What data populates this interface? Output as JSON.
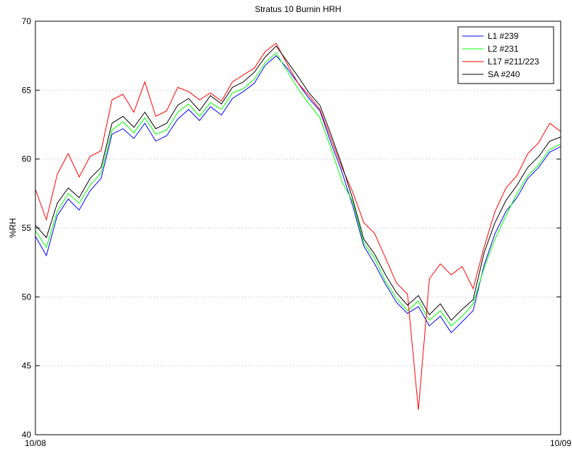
{
  "chart_data": {
    "type": "line",
    "title": "Stratus 10 Burnin HRH",
    "y_label": "%RH",
    "x": [
      0,
      0.5,
      1,
      1.5,
      2,
      2.5,
      3,
      3.5,
      4,
      4.5,
      5,
      5.5,
      6,
      6.5,
      7,
      7.5,
      8,
      8.5,
      9,
      9.5,
      10,
      10.5,
      11,
      11.5,
      12,
      12.5,
      13,
      13.5,
      14,
      14.5,
      15,
      15.5,
      16,
      16.5,
      17,
      17.5,
      18,
      18.5,
      19,
      19.5,
      20,
      20.5,
      21,
      21.5,
      22,
      22.5,
      23,
      23.5,
      24
    ],
    "xlim": [
      0,
      24
    ],
    "xticks": [
      {
        "value": 0,
        "label": "10/08"
      },
      {
        "value": 24,
        "label": "10/09"
      }
    ],
    "ylim": [
      40,
      70
    ],
    "yticks": [
      40,
      45,
      50,
      55,
      60,
      65,
      70
    ],
    "grid": true,
    "legend": "northeast",
    "series": [
      {
        "name": "L1 #239",
        "color": "#0000ff",
        "values": [
          54.4,
          53.0,
          55.9,
          57.1,
          56.3,
          57.7,
          58.6,
          61.8,
          62.2,
          61.5,
          62.6,
          61.3,
          61.7,
          62.9,
          63.6,
          62.8,
          63.8,
          63.2,
          64.4,
          64.9,
          65.5,
          66.8,
          67.5,
          66.6,
          65.5,
          64.4,
          63.5,
          61.2,
          59.1,
          56.6,
          53.7,
          52.4,
          50.9,
          49.6,
          48.8,
          49.3,
          47.9,
          48.6,
          47.4,
          48.2,
          49.0,
          52.3,
          54.6,
          56.2,
          57.2,
          58.6,
          59.4,
          60.5,
          60.9
        ]
      },
      {
        "name": "L2 #231",
        "color": "#00ff00",
        "values": [
          54.8,
          53.6,
          56.2,
          57.5,
          56.8,
          58.1,
          59.0,
          62.1,
          62.7,
          61.9,
          63.0,
          61.8,
          62.1,
          63.4,
          64.0,
          63.1,
          64.1,
          63.6,
          64.8,
          65.1,
          65.8,
          67.0,
          67.7,
          66.4,
          65.1,
          64.0,
          63.0,
          60.8,
          58.4,
          56.9,
          53.9,
          52.8,
          51.1,
          49.9,
          49.0,
          49.7,
          48.3,
          49.0,
          47.9,
          48.6,
          49.5,
          52.1,
          54.2,
          55.9,
          57.5,
          58.8,
          59.6,
          60.7,
          61.1
        ]
      },
      {
        "name": "L17 #211/223",
        "color": "#ff0000",
        "values": [
          57.8,
          55.6,
          58.9,
          60.4,
          58.7,
          60.2,
          60.6,
          64.3,
          64.7,
          63.4,
          65.6,
          63.1,
          63.5,
          65.2,
          64.9,
          64.3,
          64.8,
          64.2,
          65.6,
          66.1,
          66.6,
          67.8,
          68.4,
          66.9,
          65.5,
          64.6,
          63.6,
          61.5,
          59.4,
          57.6,
          55.4,
          54.6,
          52.8,
          51.0,
          50.2,
          41.8,
          51.3,
          52.4,
          51.6,
          52.2,
          50.6,
          53.6,
          56.2,
          57.9,
          58.8,
          60.4,
          61.2,
          62.6,
          62.0
        ]
      },
      {
        "name": "SA #240",
        "color": "#000000",
        "values": [
          55.2,
          54.3,
          56.8,
          57.9,
          57.2,
          58.6,
          59.4,
          62.6,
          63.1,
          62.3,
          63.4,
          62.2,
          62.6,
          63.9,
          64.4,
          63.5,
          64.6,
          64.0,
          65.2,
          65.6,
          66.3,
          67.4,
          68.2,
          67.1,
          66.0,
          64.8,
          63.9,
          61.8,
          59.6,
          57.1,
          54.2,
          53.1,
          51.6,
          50.3,
          49.4,
          50.1,
          48.7,
          49.5,
          48.3,
          49.1,
          49.8,
          53.2,
          55.4,
          57.0,
          58.1,
          59.4,
          60.2,
          61.3,
          61.6
        ]
      }
    ]
  }
}
